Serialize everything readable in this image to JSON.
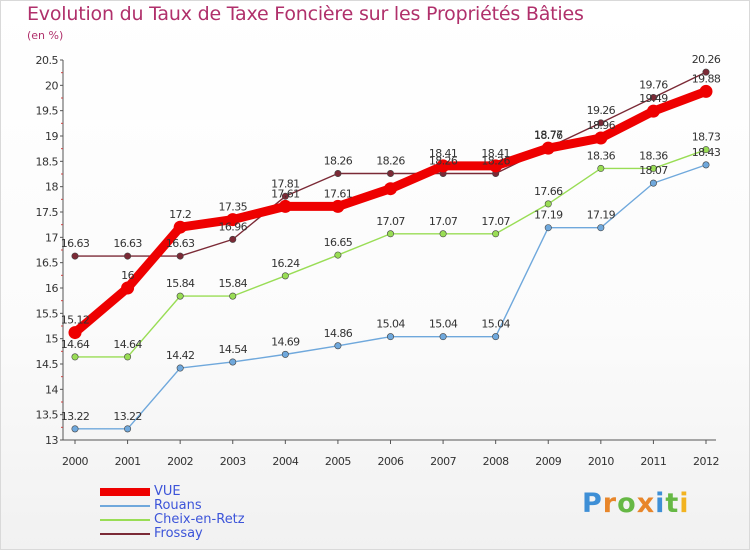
{
  "chart_data": {
    "type": "line",
    "title": "Evolution du Taux de Taxe Foncière sur les Propriétés Bâties",
    "subtitle": "(en %)",
    "xlabel": "",
    "ylabel": "(en %)",
    "ylim": [
      13,
      20.5
    ],
    "grid": false,
    "legend_position": "bottom-left",
    "categories": [
      "2000",
      "2001",
      "2002",
      "2003",
      "2004",
      "2005",
      "2006",
      "2007",
      "2008",
      "2009",
      "2010",
      "2011",
      "2012"
    ],
    "y_ticks": [
      "13",
      "13.5",
      "14",
      "14.5",
      "15",
      "15.5",
      "16",
      "16.5",
      "17",
      "17.5",
      "18",
      "18.5",
      "19",
      "19.5",
      "20",
      "20.5"
    ],
    "series": [
      {
        "name": "VUE",
        "color": "#ee0000",
        "values": [
          15.12,
          16,
          17.2,
          17.35,
          17.61,
          17.61,
          17.96,
          18.41,
          18.41,
          18.76,
          18.96,
          19.49,
          19.88
        ],
        "labels": [
          "15.12",
          "16",
          "17.2",
          "17.35",
          "17.61",
          "17.61",
          "",
          "18.41",
          "18.41",
          "18.76",
          "18.96",
          "19.49",
          "19.88"
        ]
      },
      {
        "name": "Rouans",
        "color": "#6fa8dc",
        "values": [
          13.22,
          13.22,
          14.42,
          14.54,
          14.69,
          14.86,
          15.04,
          15.04,
          15.04,
          17.19,
          17.19,
          18.07,
          18.43
        ],
        "labels": [
          "13.22",
          "13.22",
          "14.42",
          "14.54",
          "14.69",
          "14.86",
          "15.04",
          "15.04",
          "15.04",
          "17.19",
          "17.19",
          "18.07",
          "18.43"
        ]
      },
      {
        "name": "Cheix-en-Retz",
        "color": "#99dd55",
        "values": [
          14.64,
          14.64,
          15.84,
          15.84,
          16.24,
          16.65,
          17.07,
          17.07,
          17.07,
          17.66,
          18.36,
          18.36,
          18.73
        ],
        "labels": [
          "14.64",
          "14.64",
          "15.84",
          "15.84",
          "16.24",
          "16.65",
          "17.07",
          "17.07",
          "17.07",
          "17.66",
          "18.36",
          "18.36",
          "18.73"
        ]
      },
      {
        "name": "Frossay",
        "color": "#7b2a36",
        "values": [
          16.63,
          16.63,
          16.63,
          16.96,
          17.81,
          18.26,
          18.26,
          18.26,
          18.26,
          18.77,
          19.26,
          19.76,
          20.26
        ],
        "labels": [
          "16.63",
          "16.63",
          "16.63",
          "16.96",
          "17.81",
          "18.26",
          "18.26",
          "18.26",
          "18.26",
          "18.77",
          "19.26",
          "19.76",
          "20.26"
        ]
      }
    ]
  },
  "legend": {
    "items": [
      "VUE",
      "Rouans",
      "Cheix-en-Retz",
      "Frossay"
    ]
  },
  "brand": {
    "letters": [
      "P",
      "r",
      "o",
      "x",
      "i",
      "t",
      "i"
    ],
    "colors": [
      "#3e8fd6",
      "#e8862a",
      "#66b845",
      "#e8862a",
      "#3e8fd6",
      "#66b845",
      "#f2b320"
    ]
  }
}
